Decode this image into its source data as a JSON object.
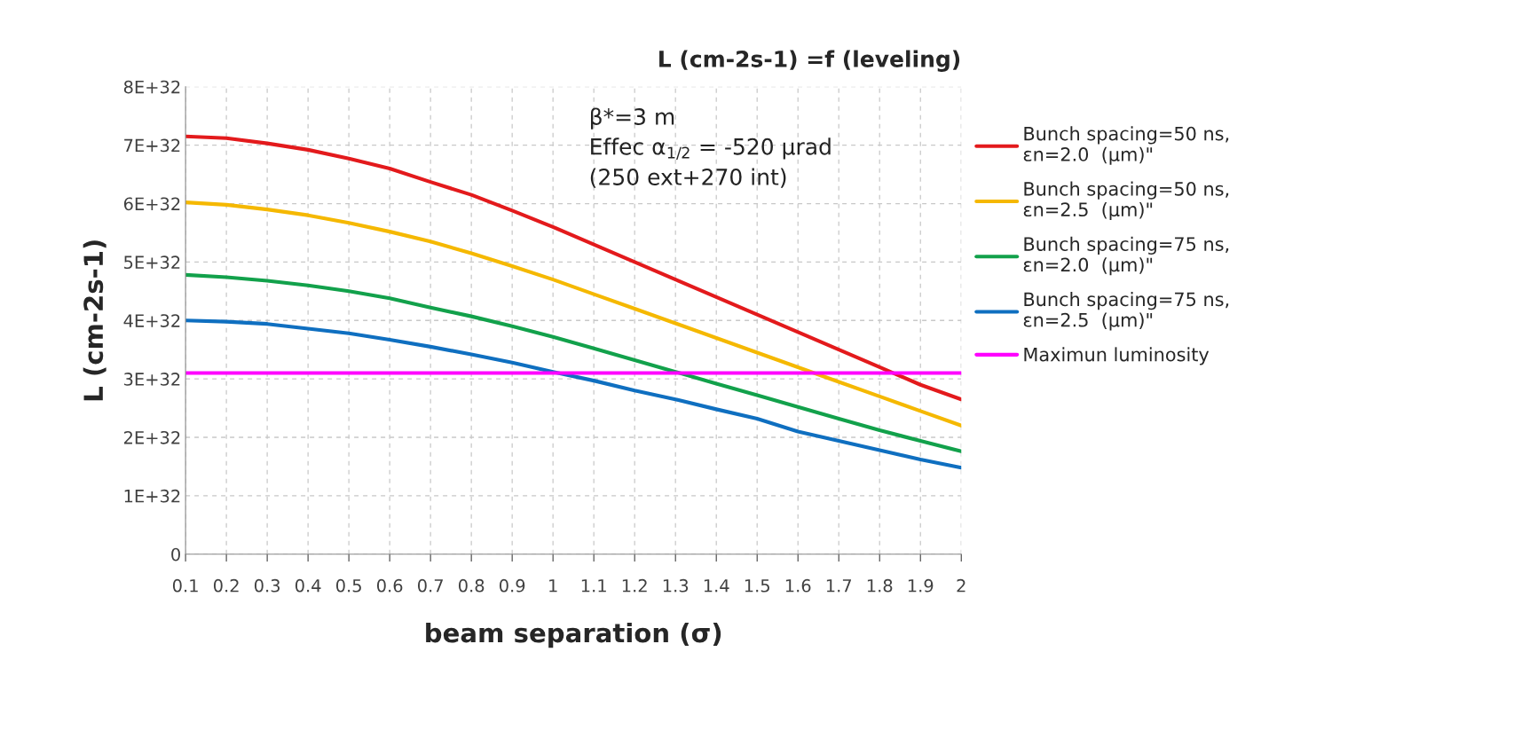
{
  "chart_data": {
    "type": "line",
    "title": "L (cm-2s-1) =f (leveling)",
    "xlabel": "beam separation (σ)",
    "ylabel": "L (cm-2s-1)",
    "categories": [
      "0.1",
      "0.2",
      "0.3",
      "0.4",
      "0.5",
      "0.6",
      "0.7",
      "0.8",
      "0.9",
      "1",
      "1.1",
      "1.2",
      "1.3",
      "1.4",
      "1.5",
      "1.6",
      "1.7",
      "1.8",
      "1.9",
      "2"
    ],
    "series": [
      {
        "name": "Bunch spacing=50 ns,\nεn=2.0  (µm)\"",
        "color": "#e31a1c",
        "values": [
          7.15e+32,
          7.12e+32,
          7.03e+32,
          6.92e+32,
          6.77e+32,
          6.6e+32,
          6.37e+32,
          6.15e+32,
          5.88e+32,
          5.6e+32,
          5.3e+32,
          5e+32,
          4.7e+32,
          4.4e+32,
          4.1e+32,
          3.8e+32,
          3.5e+32,
          3.2e+32,
          2.9e+32,
          2.65e+32
        ]
      },
      {
        "name": "Bunch spacing=50 ns,\nεn=2.5  (µm)\"",
        "color": "#f5b800",
        "values": [
          6.02e+32,
          5.98e+32,
          5.9e+32,
          5.8e+32,
          5.67e+32,
          5.52e+32,
          5.35e+32,
          5.15e+32,
          4.93e+32,
          4.7e+32,
          4.45e+32,
          4.2e+32,
          3.95e+32,
          3.7e+32,
          3.45e+32,
          3.2e+32,
          2.95e+32,
          2.7e+32,
          2.45e+32,
          2.2e+32
        ]
      },
      {
        "name": "Bunch spacing=75 ns,\nεn=2.0  (µm)\"",
        "color": "#12a14b",
        "values": [
          4.78e+32,
          4.74e+32,
          4.68e+32,
          4.6e+32,
          4.5e+32,
          4.38e+32,
          4.22e+32,
          4.07e+32,
          3.9e+32,
          3.72e+32,
          3.52e+32,
          3.32e+32,
          3.12e+32,
          2.92e+32,
          2.72e+32,
          2.52e+32,
          2.32e+32,
          2.12e+32,
          1.94e+32,
          1.76e+32
        ]
      },
      {
        "name": "Bunch spacing=75 ns,\nεn=2.5  (µm)\"",
        "color": "#0f6fc0",
        "values": [
          4e+32,
          3.98e+32,
          3.94e+32,
          3.86e+32,
          3.78e+32,
          3.67e+32,
          3.55e+32,
          3.42e+32,
          3.28e+32,
          3.12e+32,
          2.97e+32,
          2.8e+32,
          2.65e+32,
          2.48e+32,
          2.32e+32,
          2.1e+32,
          1.94e+32,
          1.78e+32,
          1.62e+32,
          1.48e+32
        ]
      },
      {
        "name": "Maximun luminosity",
        "color": "#ff00ff",
        "values": [
          3.1e+32,
          3.1e+32,
          3.1e+32,
          3.1e+32,
          3.1e+32,
          3.1e+32,
          3.1e+32,
          3.1e+32,
          3.1e+32,
          3.1e+32,
          3.1e+32,
          3.1e+32,
          3.1e+32,
          3.1e+32,
          3.1e+32,
          3.1e+32,
          3.1e+32,
          3.1e+32,
          3.1e+32,
          3.1e+32
        ]
      }
    ],
    "ylim": [
      0,
      8e+32
    ],
    "yticks": [
      0,
      {
        "value": 1e+32,
        "label": "1E+32"
      },
      {
        "value": 2e+32,
        "label": "2E+32"
      },
      {
        "value": 3e+32,
        "label": "3E+32"
      },
      {
        "value": 4e+32,
        "label": "4E+32"
      },
      {
        "value": 5e+32,
        "label": "5E+32"
      },
      {
        "value": 6e+32,
        "label": "6E+32"
      },
      {
        "value": 7e+32,
        "label": "7E+32"
      },
      {
        "value": 8e+32,
        "label": "8E+32"
      }
    ],
    "annotations": [
      "β*=3 m\nEffec α$_{1/2}$ = -520 µrad\n(250 ext+270 int)"
    ],
    "grid": true,
    "legend": "right",
    "marker": "none",
    "line_style": "solid"
  }
}
